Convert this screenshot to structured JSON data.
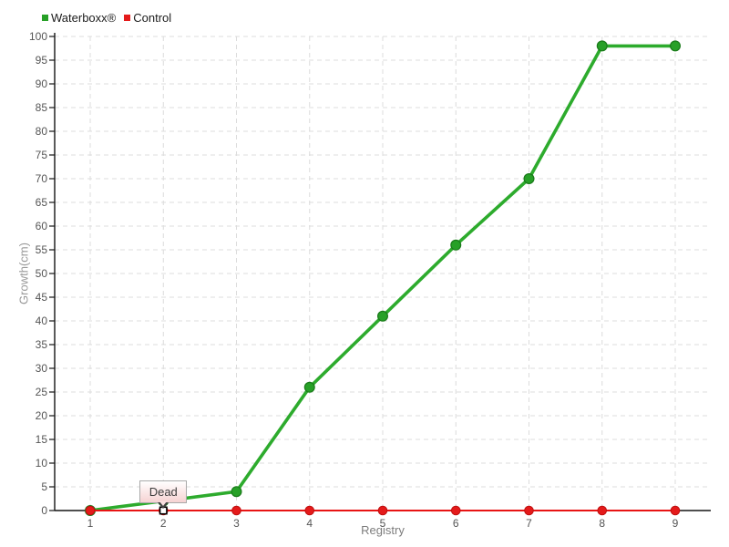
{
  "chart_data": {
    "type": "line",
    "title": "",
    "xlabel": "Registry",
    "ylabel": "Growth(cm)",
    "x": [
      1,
      2,
      3,
      4,
      5,
      6,
      7,
      8,
      9
    ],
    "series": [
      {
        "name": "Waterboxx®",
        "color": "#2dab2d",
        "marker_fill": "#27a027",
        "marker_stroke": "#1a7a1a",
        "values": [
          0,
          2,
          4,
          26,
          41,
          56,
          70,
          98,
          98
        ]
      },
      {
        "name": "Control",
        "color": "#e81414",
        "marker_fill": "#e41a1a",
        "marker_stroke": "#c01010",
        "values": [
          0,
          0,
          0,
          0,
          0,
          0,
          0,
          0,
          0
        ]
      }
    ],
    "ylim": [
      0,
      100
    ],
    "ytick_step": 5,
    "grid": "dashed",
    "legend_position": "top-left",
    "tooltip": {
      "text": "Dead",
      "x": 2,
      "series": "Control",
      "value": 0
    },
    "colors": {
      "grid": "#dcdcdc",
      "axis": "#151515",
      "tick_label": "#555555",
      "axis_title": "#999999",
      "legend_text": "#1c1c1c",
      "tooltip_border": "#a9a9a9",
      "tooltip_bg_bottom": "#f6d2d2",
      "tooltip_text": "#3c3c3c",
      "selected_marker_fill": "#ffffff",
      "selected_marker_stroke": "#000000"
    }
  }
}
